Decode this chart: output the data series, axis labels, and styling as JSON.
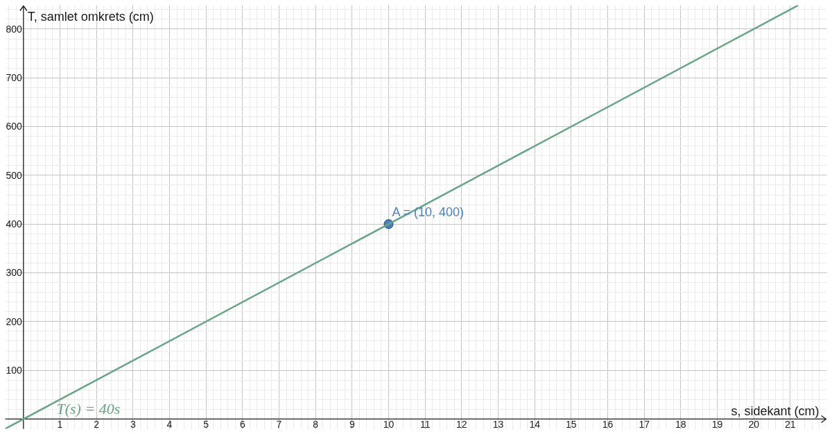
{
  "chart_data": {
    "type": "line",
    "xlabel": "s, sidekant (cm)",
    "ylabel": "T, samlet omkrets (cm)",
    "xlim": [
      -0.5,
      22
    ],
    "ylim": [
      -20,
      849
    ],
    "xticks": [
      {
        "value": -0.4,
        "label": null
      },
      {
        "value": -0.2,
        "label": null
      },
      {
        "value": 0,
        "label": null
      },
      {
        "value": 0.2,
        "label": null
      },
      {
        "value": 0.4,
        "label": null
      },
      {
        "value": 0.6,
        "label": null
      },
      {
        "value": 0.8,
        "label": null
      },
      1,
      {
        "value": 1.2,
        "label": null
      },
      {
        "value": 1.4,
        "label": null
      },
      {
        "value": 1.6,
        "label": null
      },
      {
        "value": 1.8,
        "label": null
      },
      2,
      {
        "value": 2.2,
        "label": null
      },
      {
        "value": 2.4,
        "label": null
      },
      {
        "value": 2.6,
        "label": null
      },
      {
        "value": 2.8,
        "label": null
      },
      3,
      {
        "value": 3.2,
        "label": null
      },
      {
        "value": 3.4,
        "label": null
      },
      {
        "value": 3.6,
        "label": null
      },
      {
        "value": 3.8,
        "label": null
      },
      4,
      {
        "value": 4.2,
        "label": null
      },
      {
        "value": 4.4,
        "label": null
      },
      {
        "value": 4.6,
        "label": null
      },
      {
        "value": 4.8,
        "label": null
      },
      5,
      {
        "value": 5.2,
        "label": null
      },
      {
        "value": 5.4,
        "label": null
      },
      {
        "value": 5.6,
        "label": null
      },
      {
        "value": 5.8,
        "label": null
      },
      6,
      {
        "value": 6.2,
        "label": null
      },
      {
        "value": 6.4,
        "label": null
      },
      {
        "value": 6.6,
        "label": null
      },
      {
        "value": 6.8,
        "label": null
      },
      7,
      {
        "value": 7.2,
        "label": null
      },
      {
        "value": 7.4,
        "label": null
      },
      {
        "value": 7.6,
        "label": null
      },
      {
        "value": 7.8,
        "label": null
      },
      8,
      {
        "value": 8.2,
        "label": null
      },
      {
        "value": 8.4,
        "label": null
      },
      {
        "value": 8.6,
        "label": null
      },
      {
        "value": 8.8,
        "label": null
      },
      9,
      {
        "value": 9.2,
        "label": null
      },
      {
        "value": 9.4,
        "label": null
      },
      {
        "value": 9.6,
        "label": null
      },
      {
        "value": 9.8,
        "label": null
      },
      10,
      {
        "value": 10.2,
        "label": null
      },
      {
        "value": 10.4,
        "label": null
      },
      {
        "value": 10.6,
        "label": null
      },
      {
        "value": 10.8,
        "label": null
      },
      11,
      {
        "value": 11.2,
        "label": null
      },
      {
        "value": 11.4,
        "label": null
      },
      {
        "value": 11.6,
        "label": null
      },
      {
        "value": 11.8,
        "label": null
      },
      12,
      {
        "value": 12.2,
        "label": null
      },
      {
        "value": 12.4,
        "label": null
      },
      {
        "value": 12.6,
        "label": null
      },
      {
        "value": 12.8,
        "label": null
      },
      13,
      {
        "value": 13.2,
        "label": null
      },
      {
        "value": 13.4,
        "label": null
      },
      {
        "value": 13.6,
        "label": null
      },
      {
        "value": 13.8,
        "label": null
      },
      14,
      {
        "value": 14.2,
        "label": null
      },
      {
        "value": 14.4,
        "label": null
      },
      {
        "value": 14.6,
        "label": null
      },
      {
        "value": 14.8,
        "label": null
      },
      15,
      {
        "value": 15.2,
        "label": null
      },
      {
        "value": 15.4,
        "label": null
      },
      {
        "value": 15.6,
        "label": null
      },
      {
        "value": 15.8,
        "label": null
      },
      16,
      {
        "value": 16.2,
        "label": null
      },
      {
        "value": 16.4,
        "label": null
      },
      {
        "value": 16.6,
        "label": null
      },
      {
        "value": 16.8,
        "label": null
      },
      17,
      {
        "value": 17.2,
        "label": null
      },
      {
        "value": 17.4,
        "label": null
      },
      {
        "value": 17.6,
        "label": null
      },
      {
        "value": 17.8,
        "label": null
      },
      18,
      {
        "value": 18.2,
        "label": null
      },
      {
        "value": 18.4,
        "label": null
      },
      {
        "value": 18.6,
        "label": null
      },
      {
        "value": 18.8,
        "label": null
      },
      19,
      {
        "value": 19.2,
        "label": null
      },
      {
        "value": 19.4,
        "label": null
      },
      {
        "value": 19.6,
        "label": null
      },
      {
        "value": 19.8,
        "label": null
      },
      20,
      {
        "value": 20.2,
        "label": null
      },
      {
        "value": 20.4,
        "label": null
      },
      {
        "value": 20.6,
        "label": null
      },
      {
        "value": 20.8,
        "label": null
      },
      21,
      {
        "value": 21.2,
        "label": null
      },
      {
        "value": 21.4,
        "label": null
      },
      {
        "value": 21.6,
        "label": null
      },
      {
        "value": 21.8,
        "label": null
      }
    ],
    "yticks": [
      {
        "value": 0,
        "label": null
      },
      {
        "value": 20,
        "label": null
      },
      {
        "value": 40,
        "label": null
      },
      {
        "value": 60,
        "label": null
      },
      {
        "value": 80,
        "label": null
      },
      100,
      {
        "value": 120,
        "label": null
      },
      {
        "value": 140,
        "label": null
      },
      {
        "value": 160,
        "label": null
      },
      {
        "value": 180,
        "label": null
      },
      200,
      {
        "value": 220,
        "label": null
      },
      {
        "value": 240,
        "label": null
      },
      {
        "value": 260,
        "label": null
      },
      {
        "value": 280,
        "label": null
      },
      300,
      {
        "value": 320,
        "label": null
      },
      {
        "value": 340,
        "label": null
      },
      {
        "value": 360,
        "label": null
      },
      {
        "value": 380,
        "label": null
      },
      400,
      {
        "value": 420,
        "label": null
      },
      {
        "value": 440,
        "label": null
      },
      {
        "value": 460,
        "label": null
      },
      {
        "value": 480,
        "label": null
      },
      500,
      {
        "value": 520,
        "label": null
      },
      {
        "value": 540,
        "label": null
      },
      {
        "value": 560,
        "label": null
      },
      {
        "value": 580,
        "label": null
      },
      600,
      {
        "value": 620,
        "label": null
      },
      {
        "value": 640,
        "label": null
      },
      {
        "value": 660,
        "label": null
      },
      {
        "value": 680,
        "label": null
      },
      700,
      {
        "value": 720,
        "label": null
      },
      {
        "value": 740,
        "label": null
      },
      {
        "value": 760,
        "label": null
      },
      {
        "value": 780,
        "label": null
      },
      800,
      {
        "value": 820,
        "label": null
      },
      {
        "value": 840,
        "label": null
      }
    ],
    "grid": true,
    "legend": false,
    "series": [
      {
        "name": "T(s) = 40s",
        "color": "#66a585",
        "marker": "none",
        "x": [
          -0.5,
          21.2
        ],
        "values": [
          -20,
          848
        ]
      },
      {
        "type": "scatter",
        "color": "#4a7fc1",
        "marker": "circle",
        "x": [
          10
        ],
        "values": [
          400
        ],
        "value_labels": [
          "A = (10, 400)"
        ]
      }
    ]
  }
}
